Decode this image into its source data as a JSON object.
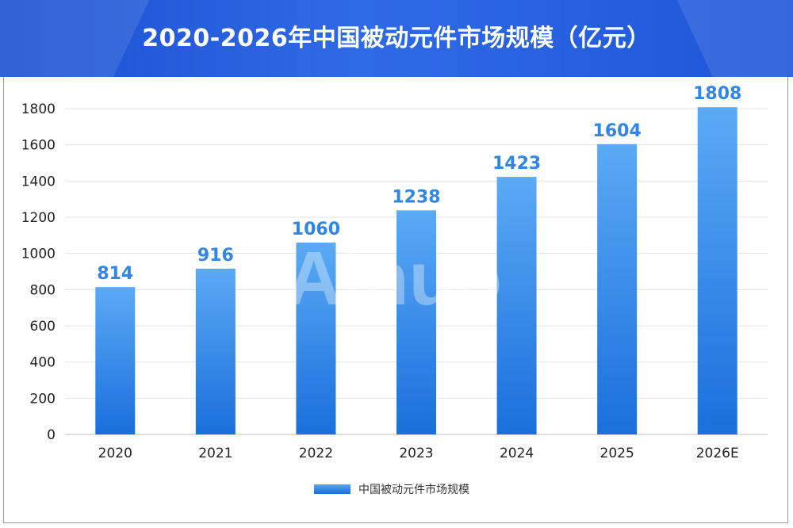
{
  "title": "2020-2026年中国被动元件市场规模（亿元）",
  "watermark": "Ainuo",
  "colors": {
    "banner": "#2f6ae6",
    "bar_top": "#5aaaf5",
    "bar_bottom": "#1a6fdc",
    "label": "#2f86e8"
  },
  "chart_data": {
    "type": "bar",
    "categories": [
      "2020",
      "2021",
      "2022",
      "2023",
      "2024",
      "2025",
      "2026E"
    ],
    "series": [
      {
        "name": "中国被动元件市场规模",
        "values": [
          814,
          916,
          1060,
          1238,
          1423,
          1604,
          1808
        ]
      }
    ],
    "data_labels": [
      "814",
      "916",
      "1060",
      "1238",
      "1423",
      "1604",
      "1808"
    ],
    "ylim": [
      0,
      1800
    ],
    "yticks": [
      0,
      200,
      400,
      600,
      800,
      1000,
      1200,
      1400,
      1600,
      1800
    ],
    "grid": true,
    "legend_position": "bottom-center"
  }
}
